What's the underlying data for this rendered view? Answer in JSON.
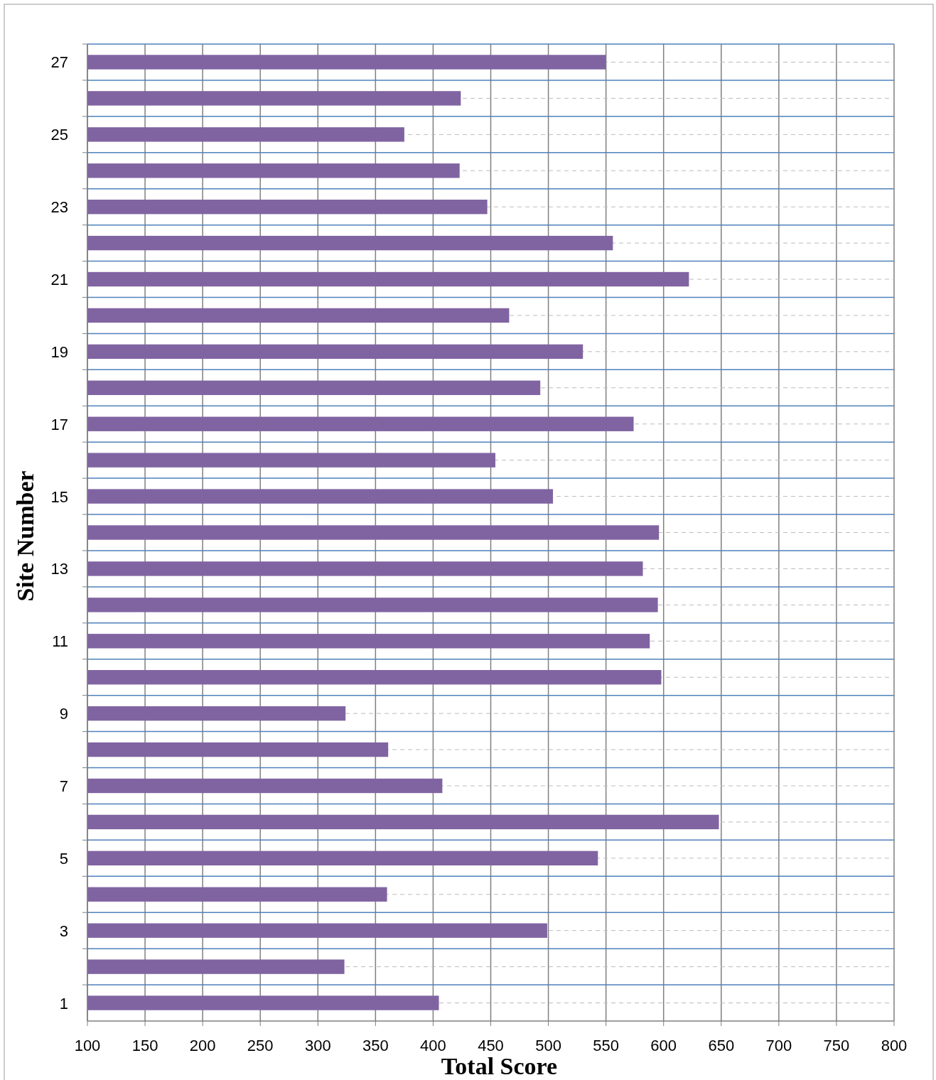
{
  "chart_data": {
    "type": "bar",
    "orientation": "horizontal",
    "xlabel": "Total Score",
    "ylabel": "Site Number",
    "categories": [
      "27",
      null,
      "25",
      null,
      "23",
      null,
      "21",
      null,
      "19",
      null,
      "17",
      null,
      "15",
      null,
      "13",
      null,
      "11",
      null,
      "9",
      null,
      "7",
      null,
      "5",
      null,
      "3",
      null,
      "1"
    ],
    "values": [
      550,
      424,
      375,
      423,
      447,
      556,
      622,
      466,
      530,
      493,
      574,
      454,
      504,
      596,
      582,
      595,
      588,
      598,
      324,
      361,
      408,
      648,
      543,
      360,
      499,
      323,
      405
    ],
    "color": "#8064a2",
    "xlim": [
      100,
      800
    ],
    "xticks": [
      100,
      150,
      200,
      250,
      300,
      350,
      400,
      450,
      500,
      550,
      600,
      650,
      700,
      750,
      800
    ],
    "grid": true
  }
}
